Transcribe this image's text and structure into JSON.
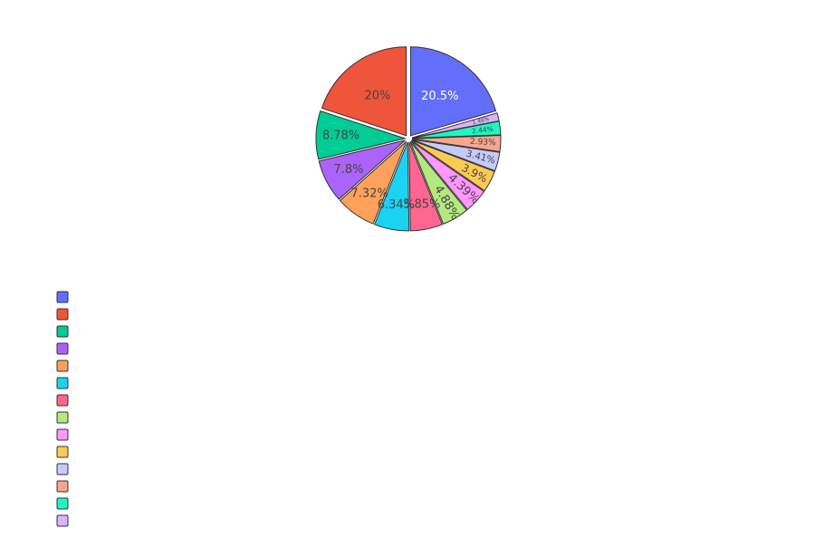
{
  "chart_data": {
    "type": "pie",
    "direction": "clockwise",
    "start": "top",
    "exploded": true,
    "legend_position": "bottom-left",
    "slices": [
      {
        "value": 20.5,
        "label": "20.5%",
        "color": "#636efa",
        "text_color": "#ffffff"
      },
      {
        "value": 1.46,
        "label": "1.46%",
        "color": "#dab4fd",
        "text_color": "#444444"
      },
      {
        "value": 2.44,
        "label": "2.44%",
        "color": "#1ef7c0",
        "text_color": "#444444"
      },
      {
        "value": 2.93,
        "label": "2.93%",
        "color": "#f9a68e",
        "text_color": "#444444"
      },
      {
        "value": 3.41,
        "label": "3.41%",
        "color": "#c6cafc",
        "text_color": "#444444"
      },
      {
        "value": 3.9,
        "label": "3.9%",
        "color": "#fecb52",
        "text_color": "#444444"
      },
      {
        "value": 4.39,
        "label": "4.39%",
        "color": "#ff97ff",
        "text_color": "#444444"
      },
      {
        "value": 4.88,
        "label": "4.88%",
        "color": "#b6e880",
        "text_color": "#444444"
      },
      {
        "value": 5.85,
        "label": "5.85%",
        "color": "#ff6692",
        "text_color": "#444444"
      },
      {
        "value": 6.34,
        "label": "6.34%",
        "color": "#19d3f3",
        "text_color": "#444444"
      },
      {
        "value": 7.32,
        "label": "7.32%",
        "color": "#ffa15a",
        "text_color": "#444444"
      },
      {
        "value": 7.8,
        "label": "7.8%",
        "color": "#ab63fa",
        "text_color": "#444444"
      },
      {
        "value": 8.78,
        "label": "8.78%",
        "color": "#00cc96",
        "text_color": "#444444"
      },
      {
        "value": 20.0,
        "label": "20%",
        "color": "#ef553b",
        "text_color": "#444444"
      }
    ],
    "legend": {
      "entries": [
        {
          "color": "#636efa"
        },
        {
          "color": "#ef553b"
        },
        {
          "color": "#00cc96"
        },
        {
          "color": "#ab63fa"
        },
        {
          "color": "#ffa15a"
        },
        {
          "color": "#19d3f3"
        },
        {
          "color": "#ff6692"
        },
        {
          "color": "#b6e880"
        },
        {
          "color": "#ff97ff"
        },
        {
          "color": "#fecb52"
        },
        {
          "color": "#c6cafc"
        },
        {
          "color": "#f9a68e"
        },
        {
          "color": "#1ef7c0"
        },
        {
          "color": "#dab4fd"
        }
      ]
    }
  }
}
